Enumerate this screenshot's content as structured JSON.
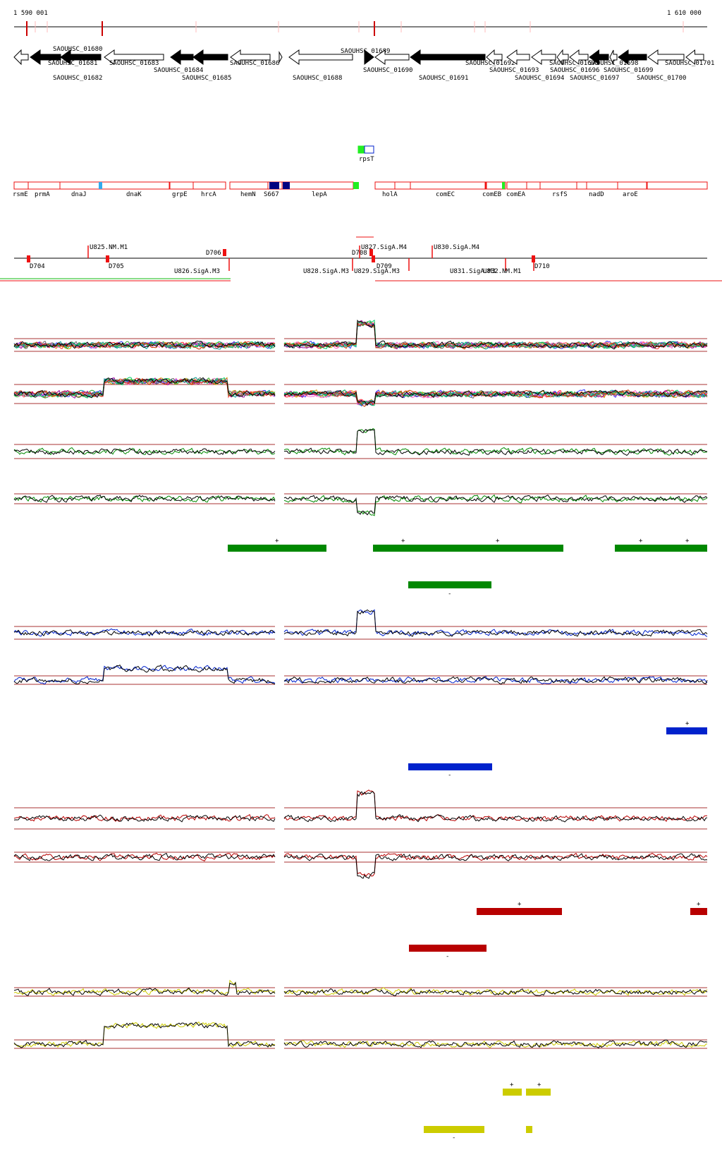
{
  "coords": {
    "start": "1 590 001",
    "end": "1 610 000"
  },
  "colors": {
    "axis": "#000000",
    "tick": "#cc0000",
    "feature_red": "#ee1111",
    "green": "#008800",
    "blue": "#0022cc",
    "red": "#b80000",
    "yellow": "#cccc00",
    "lightgreen": "#88dd88",
    "navy": "#000080",
    "skyblue": "#33aaee",
    "brightgreen": "#22ee22",
    "thresh": "#aa3333"
  },
  "genes": {
    "forward_marker": "SAOUHSC_01689",
    "items": [
      {
        "tag": "SAOUHSC_01680",
        "strand": "-",
        "fill": "empty"
      },
      {
        "tag": "SAOUHSC_01681",
        "strand": "-",
        "fill": "solid"
      },
      {
        "tag": "SAOUHSC_01682",
        "strand": "-",
        "fill": "solid"
      },
      {
        "tag": "SAOUHSC_01683",
        "strand": "-",
        "fill": "empty"
      },
      {
        "tag": "SAOUHSC_01684",
        "strand": "-",
        "fill": "solid"
      },
      {
        "tag": "SAOUHSC_01685",
        "strand": "-",
        "fill": "solid"
      },
      {
        "tag": "SAOUHSC_01686",
        "strand": "-",
        "fill": "empty"
      },
      {
        "tag": "SAOUHSC_01688",
        "strand": "-",
        "fill": "empty"
      },
      {
        "tag": "SAOUHSC_01689",
        "strand": "+",
        "fill": "solid"
      },
      {
        "tag": "SAOUHSC_01690",
        "strand": "-",
        "fill": "empty"
      },
      {
        "tag": "SAOUHSC_01691",
        "strand": "-",
        "fill": "solid"
      },
      {
        "tag": "SAOUHSC_01692",
        "strand": "-",
        "fill": "empty"
      },
      {
        "tag": "SAOUHSC_01693",
        "strand": "-",
        "fill": "empty"
      },
      {
        "tag": "SAOUHSC_01694",
        "strand": "-",
        "fill": "empty"
      },
      {
        "tag": "SAOUHSC_01695",
        "strand": "-",
        "fill": "empty"
      },
      {
        "tag": "SAOUHSC_01696",
        "strand": "-",
        "fill": "empty"
      },
      {
        "tag": "SAOUHSC_01697",
        "strand": "-",
        "fill": "solid"
      },
      {
        "tag": "SAOUHSC_01698",
        "strand": "-",
        "fill": "empty"
      },
      {
        "tag": "SAOUHSC_01699",
        "strand": "-",
        "fill": "solid"
      },
      {
        "tag": "SAOUHSC_01700",
        "strand": "-",
        "fill": "empty"
      },
      {
        "tag": "SAOUHSC_01701",
        "strand": "-",
        "fill": "empty"
      }
    ]
  },
  "gene_names": [
    "rpsT",
    "rsmE",
    "prmA",
    "dnaJ",
    "dnaK",
    "grpE",
    "hrcA",
    "hemN",
    "S667",
    "lepA",
    "holA",
    "comEC",
    "comEB",
    "comEA",
    "rsfS",
    "nadD",
    "aroE"
  ],
  "regulatory": [
    "U825.NM.M1",
    "D704",
    "D705",
    "D706",
    "U826.SigA.M3",
    "U827.SigA.M4",
    "D708",
    "D709",
    "U828.SigA.M3",
    "U829.SigA.M3",
    "U830.SigA.M4",
    "U831.SigA.M3",
    "U832.NM.M1",
    "D710"
  ],
  "tracks": [
    {
      "color": "green",
      "segments_plus": [
        "+",
        "+",
        "+",
        "+",
        "+"
      ],
      "segments_minus": [
        "-"
      ]
    },
    {
      "color": "blue",
      "segments_plus": [
        "+"
      ],
      "segments_minus": [
        "-"
      ]
    },
    {
      "color": "red",
      "segments_plus": [
        "+",
        "+"
      ],
      "segments_minus": [
        "-"
      ]
    },
    {
      "color": "yellow",
      "segments_plus": [
        "+",
        "+"
      ],
      "segments_minus": [
        "-"
      ]
    }
  ]
}
